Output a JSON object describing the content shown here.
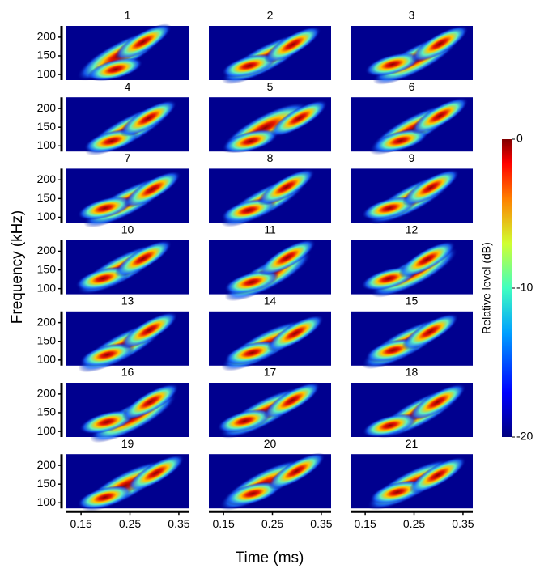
{
  "chart_data": {
    "type": "spectrogram",
    "panels": [
      "1",
      "2",
      "3",
      "4",
      "5",
      "6",
      "7",
      "8",
      "9",
      "10",
      "11",
      "12",
      "13",
      "14",
      "15",
      "16",
      "17",
      "18",
      "19",
      "20",
      "21"
    ],
    "x_label": "Time (ms)",
    "y_label": "Frequency (kHz)",
    "xlim": [
      0.12,
      0.37
    ],
    "xticks": [
      0.15,
      0.25,
      0.35
    ],
    "ylim": [
      85,
      230
    ],
    "yticks": [
      100,
      150,
      200
    ],
    "colorbar": {
      "label": "Relative level (dB)",
      "lim": [
        -20,
        0
      ],
      "ticks": [
        0,
        -10,
        -20
      ]
    }
  }
}
